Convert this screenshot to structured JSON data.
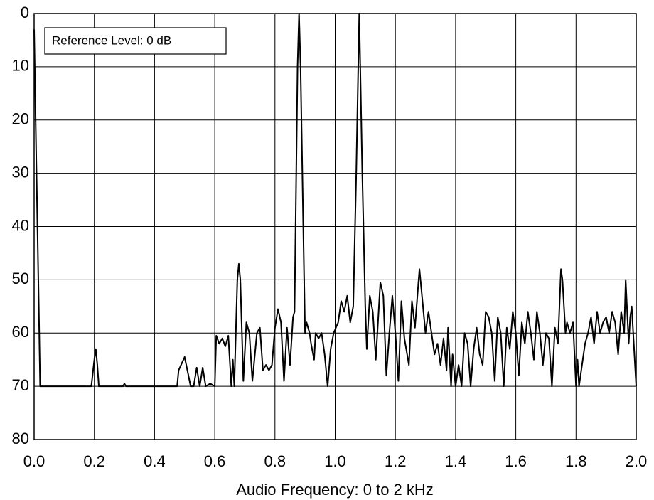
{
  "chart_data": {
    "type": "line",
    "xlabel": "Audio Frequency: 0 to 2 kHz",
    "annotation": "Reference Level: 0 dB",
    "xlim": [
      0,
      2
    ],
    "ylim": [
      80,
      0
    ],
    "xticks": [
      {
        "value": 0,
        "label": "0.0"
      },
      0.2,
      0.4,
      0.6,
      0.8,
      {
        "value": 1,
        "label": "1.0"
      },
      1.2,
      1.4,
      1.6,
      1.8,
      {
        "value": 2,
        "label": "2.0"
      }
    ],
    "yticks": [
      0,
      10,
      20,
      30,
      40,
      50,
      60,
      70,
      80
    ],
    "grid": true,
    "color": "#000000",
    "x": [
      0,
      0.02,
      0.19,
      0.2,
      0.205,
      0.21,
      0.215,
      0.295,
      0.3,
      0.305,
      0.475,
      0.48,
      0.5,
      0.52,
      0.53,
      0.54,
      0.55,
      0.56,
      0.57,
      0.585,
      0.6,
      0.605,
      0.615,
      0.625,
      0.635,
      0.645,
      0.655,
      0.66,
      0.665,
      0.675,
      0.68,
      0.685,
      0.695,
      0.705,
      0.715,
      0.725,
      0.74,
      0.75,
      0.76,
      0.77,
      0.78,
      0.79,
      0.8,
      0.81,
      0.82,
      0.83,
      0.84,
      0.85,
      0.86,
      0.865,
      0.875,
      0.88,
      0.885,
      0.9,
      0.905,
      0.915,
      0.92,
      0.93,
      0.935,
      0.945,
      0.955,
      0.965,
      0.975,
      0.985,
      0.995,
      1.01,
      1.02,
      1.03,
      1.04,
      1.05,
      1.06,
      1.07,
      1.08,
      1.09,
      1.1,
      1.105,
      1.115,
      1.125,
      1.135,
      1.15,
      1.16,
      1.17,
      1.18,
      1.19,
      1.2,
      1.21,
      1.22,
      1.23,
      1.245,
      1.255,
      1.265,
      1.28,
      1.29,
      1.3,
      1.31,
      1.32,
      1.33,
      1.34,
      1.35,
      1.36,
      1.37,
      1.375,
      1.385,
      1.39,
      1.4,
      1.41,
      1.42,
      1.43,
      1.44,
      1.45,
      1.46,
      1.47,
      1.48,
      1.49,
      1.5,
      1.51,
      1.52,
      1.53,
      1.54,
      1.55,
      1.56,
      1.57,
      1.58,
      1.59,
      1.6,
      1.61,
      1.62,
      1.63,
      1.64,
      1.65,
      1.66,
      1.67,
      1.68,
      1.69,
      1.7,
      1.71,
      1.72,
      1.73,
      1.74,
      1.75,
      1.755,
      1.765,
      1.77,
      1.78,
      1.79,
      1.8,
      1.805,
      1.81,
      1.82,
      1.83,
      1.84,
      1.85,
      1.86,
      1.87,
      1.88,
      1.89,
      1.9,
      1.91,
      1.92,
      1.93,
      1.94,
      1.95,
      1.96,
      1.965,
      1.975,
      1.98,
      1.985,
      1.99,
      2.0
    ],
    "values": [
      3,
      70,
      70,
      65,
      63,
      66,
      70,
      70,
      69.5,
      70,
      70,
      67,
      64.5,
      70,
      70,
      66.5,
      70,
      66.5,
      70,
      69.5,
      70,
      60.5,
      62,
      61,
      62.5,
      60.5,
      70,
      65,
      70,
      50,
      47,
      50,
      69,
      58,
      60,
      69,
      60,
      59,
      67,
      66,
      67,
      66,
      59,
      55.5,
      58,
      69,
      59,
      66,
      57,
      56,
      10,
      0,
      10,
      60,
      58,
      60,
      62,
      65,
      60,
      61,
      60,
      64,
      70,
      63,
      60,
      58,
      54,
      56,
      53,
      58,
      55,
      30,
      0,
      30,
      55,
      63,
      53,
      56,
      65,
      50.5,
      53,
      68,
      60,
      53,
      60,
      69,
      54,
      61,
      66,
      54,
      59,
      48,
      54,
      60,
      56,
      60,
      64,
      62,
      66,
      61,
      67,
      59,
      70,
      64,
      70,
      66,
      70,
      60,
      62,
      70,
      63,
      59,
      64,
      66,
      56,
      57,
      60,
      69,
      57,
      60,
      70,
      59,
      63,
      56,
      60,
      68,
      58,
      62,
      56,
      60,
      65,
      56,
      60,
      66,
      60,
      61,
      70,
      59,
      62,
      48,
      50,
      60,
      58,
      60,
      58,
      70,
      65,
      70,
      66,
      62,
      60,
      57,
      62,
      56,
      60,
      58,
      57,
      60,
      56,
      58,
      64,
      56,
      60,
      50,
      62,
      57,
      55,
      60,
      70
    ]
  }
}
